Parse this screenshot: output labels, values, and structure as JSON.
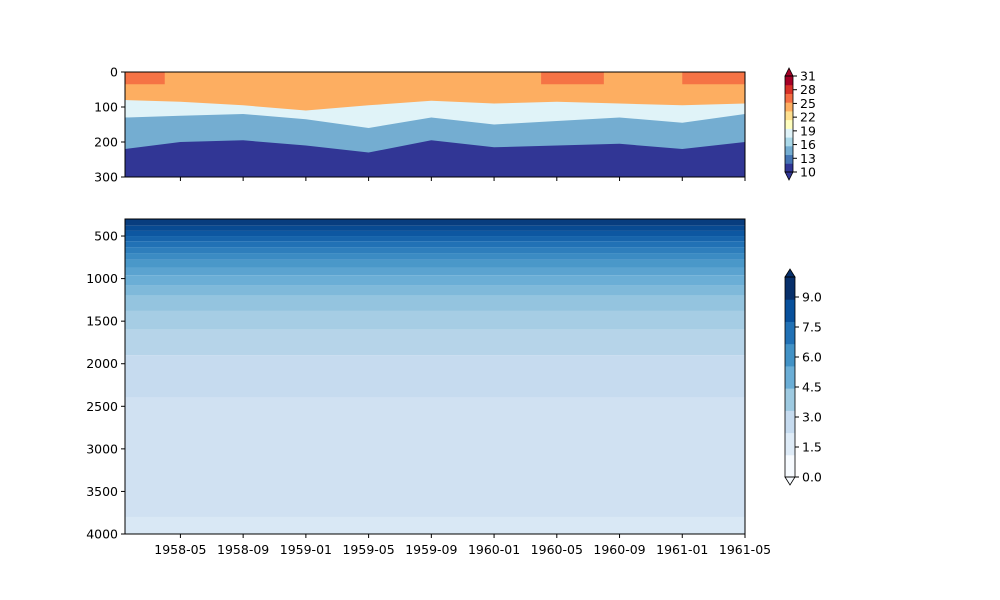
{
  "chart_data": [
    {
      "type": "heatmap",
      "panel": "top",
      "title": "",
      "xlabel": "",
      "ylabel": "",
      "y_ticks": [
        0,
        100,
        200,
        300
      ],
      "y_tick_labels": [
        "0",
        "100",
        "200",
        "300"
      ],
      "ylim": [
        300,
        0
      ],
      "x_ticks": [
        "1958-05",
        "1958-09",
        "1959-01",
        "1959-05",
        "1959-09",
        "1960-01",
        "1960-05",
        "1960-09",
        "1961-01",
        "1961-05"
      ],
      "x_tick_labels_visible": false,
      "x_range": [
        "1958-01-15",
        "1961-05-01"
      ],
      "colorbar": {
        "ticks": [
          10,
          13,
          16,
          19,
          22,
          25,
          28,
          31
        ],
        "tick_labels": [
          "10",
          "13",
          "16",
          "19",
          "22",
          "25",
          "28",
          "31"
        ],
        "min": 10,
        "max": 31,
        "extend": "both",
        "colormap": "RdYlBu_r",
        "colors": [
          "#313695",
          "#4575b4",
          "#74add1",
          "#abd9e9",
          "#e0f3f8",
          "#ffffbf",
          "#fee090",
          "#fdae61",
          "#f46d43",
          "#d73027",
          "#a50026"
        ]
      },
      "boundaries": [
        {
          "depth_top": 0,
          "points": [
            [
              "1958-01-15",
              80
            ],
            [
              "1958-05",
              85
            ],
            [
              "1958-09",
              95
            ],
            [
              "1959-01",
              110
            ],
            [
              "1959-05",
              95
            ],
            [
              "1959-09",
              82
            ],
            [
              "1960-01",
              90
            ],
            [
              "1960-05",
              85
            ],
            [
              "1960-09",
              90
            ],
            [
              "1961-01",
              95
            ],
            [
              "1961-05",
              90
            ]
          ],
          "value": 25
        },
        {
          "points": [
            [
              "1958-01-15",
              130
            ],
            [
              "1958-05",
              125
            ],
            [
              "1958-09",
              120
            ],
            [
              "1959-01",
              135
            ],
            [
              "1959-05",
              160
            ],
            [
              "1959-09",
              130
            ],
            [
              "1960-01",
              150
            ],
            [
              "1960-05",
              140
            ],
            [
              "1960-09",
              130
            ],
            [
              "1961-01",
              145
            ],
            [
              "1961-05",
              120
            ]
          ],
          "value": 19
        },
        {
          "points": [
            [
              "1958-01-15",
              220
            ],
            [
              "1958-05",
              200
            ],
            [
              "1958-09",
              195
            ],
            [
              "1959-01",
              210
            ],
            [
              "1959-05",
              230
            ],
            [
              "1959-09",
              195
            ],
            [
              "1960-01",
              215
            ],
            [
              "1960-05",
              210
            ],
            [
              "1960-09",
              205
            ],
            [
              "1961-01",
              220
            ],
            [
              "1961-05",
              200
            ]
          ],
          "value": 13
        }
      ]
    },
    {
      "type": "heatmap",
      "panel": "bottom",
      "title": "",
      "xlabel": "",
      "ylabel": "",
      "y_ticks": [
        500,
        1000,
        1500,
        2000,
        2500,
        3000,
        3500,
        4000
      ],
      "y_tick_labels": [
        "500",
        "1000",
        "1500",
        "2000",
        "2500",
        "3000",
        "3500",
        "4000"
      ],
      "ylim": [
        4000,
        300
      ],
      "x_ticks": [
        "1958-05",
        "1958-09",
        "1959-01",
        "1959-05",
        "1959-09",
        "1960-01",
        "1960-05",
        "1960-09",
        "1961-01",
        "1961-05"
      ],
      "x_tick_labels": [
        "1958-05",
        "1958-09",
        "1959-01",
        "1959-05",
        "1959-09",
        "1960-01",
        "1960-05",
        "1960-09",
        "1961-01",
        "1961-05"
      ],
      "x_range": [
        "1958-01-15",
        "1961-05-01"
      ],
      "colorbar": {
        "ticks": [
          0.0,
          1.5,
          3.0,
          4.5,
          6.0,
          7.5,
          9.0
        ],
        "tick_labels": [
          "0.0",
          "1.5",
          "3.0",
          "4.5",
          "6.0",
          "7.5",
          "9.0"
        ],
        "min": 0,
        "max": 10,
        "extend": "both",
        "colormap": "Blues",
        "colors": [
          "#f7fbff",
          "#deebf7",
          "#c6dbef",
          "#9ecae1",
          "#6baed6",
          "#4292c6",
          "#2171b5",
          "#08519c",
          "#08306b"
        ]
      },
      "levels": [
        {
          "value": 9.5,
          "depth": 320
        },
        {
          "value": 9.0,
          "depth": 380
        },
        {
          "value": 8.5,
          "depth": 440
        },
        {
          "value": 8.0,
          "depth": 500
        },
        {
          "value": 7.5,
          "depth": 560
        },
        {
          "value": 7.0,
          "depth": 630
        },
        {
          "value": 6.5,
          "depth": 700
        },
        {
          "value": 6.0,
          "depth": 780
        },
        {
          "value": 5.5,
          "depth": 870
        },
        {
          "value": 5.0,
          "depth": 960
        },
        {
          "value": 4.5,
          "depth": 1080
        },
        {
          "value": 4.0,
          "depth": 1200
        },
        {
          "value": 3.5,
          "depth": 1380
        },
        {
          "value": 3.0,
          "depth": 1600
        },
        {
          "value": 2.5,
          "depth": 1900
        },
        {
          "value": 2.0,
          "depth": 2400
        },
        {
          "value": 1.5,
          "depth": 3800
        },
        {
          "value": 1.0,
          "depth": 4000
        }
      ]
    }
  ]
}
